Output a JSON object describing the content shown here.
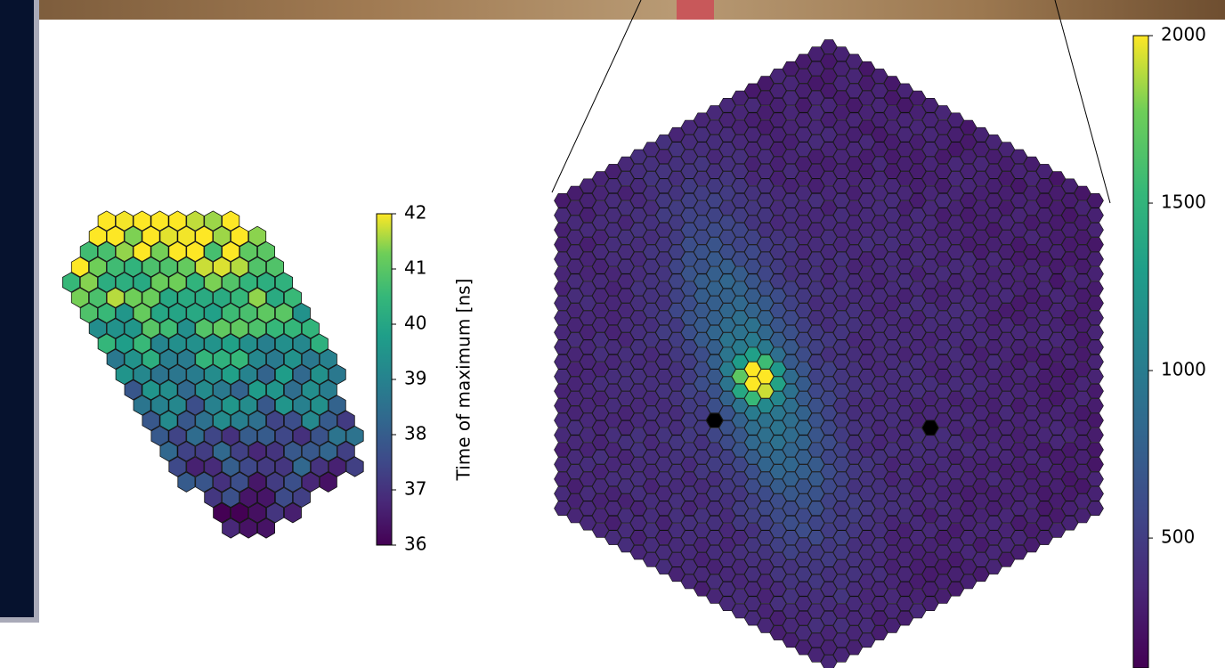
{
  "chart_data": [
    {
      "type": "colorbar",
      "label": "Time of maximum [ns]",
      "ylim": [
        36,
        42
      ],
      "yticks": [
        36,
        37,
        38,
        39,
        40,
        41,
        42
      ]
    },
    {
      "type": "colorbar",
      "ylim": [
        112,
        2000
      ],
      "yticks": [
        500,
        1000,
        1500,
        2000
      ]
    }
  ]
}
